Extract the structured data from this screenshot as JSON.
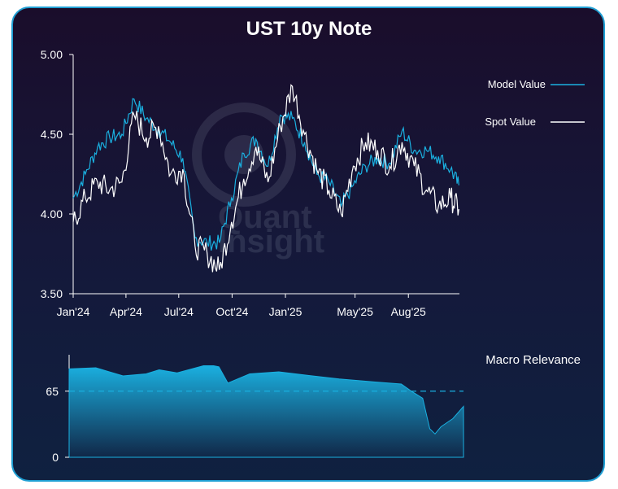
{
  "chart_data": [
    {
      "type": "line",
      "title": "UST 10y Note",
      "xlabel": "",
      "ylabel": "",
      "ylim": [
        3.5,
        5.0
      ],
      "yticks": [
        "3.50",
        "4.00",
        "4.50",
        "5.00"
      ],
      "xticks": [
        "Jan'24",
        "Apr'24",
        "Jul'24",
        "Oct'24",
        "Jan'25",
        "May'25",
        "Aug'25"
      ],
      "legend_position": "top-right",
      "series": [
        {
          "name": "Model Value",
          "color": "#1ab0e0",
          "x": [
            "2024-01-01",
            "2024-01-22",
            "2024-02-12",
            "2024-03-04",
            "2024-03-25",
            "2024-04-15",
            "2024-05-06",
            "2024-05-27",
            "2024-06-17",
            "2024-07-08",
            "2024-07-29",
            "2024-08-19",
            "2024-09-09",
            "2024-09-30",
            "2024-10-21",
            "2024-11-11",
            "2024-12-02",
            "2024-12-23",
            "2025-01-13",
            "2025-02-03",
            "2025-02-24",
            "2025-03-17",
            "2025-04-07",
            "2025-04-28",
            "2025-05-19",
            "2025-06-09",
            "2025-06-30",
            "2025-07-21",
            "2025-08-11",
            "2025-09-01",
            "2025-09-22",
            "2025-10-13",
            "2025-10-27"
          ],
          "values": [
            4.1,
            4.25,
            4.42,
            4.48,
            4.5,
            4.72,
            4.6,
            4.53,
            4.45,
            4.35,
            3.85,
            3.82,
            3.82,
            4.1,
            4.38,
            4.47,
            4.3,
            4.62,
            4.6,
            4.45,
            4.25,
            4.2,
            4.05,
            4.18,
            4.3,
            4.35,
            4.32,
            4.52,
            4.4,
            4.4,
            4.36,
            4.28,
            4.18
          ]
        },
        {
          "name": "Spot Value",
          "color": "#ffffff",
          "x": [
            "2024-01-01",
            "2024-01-22",
            "2024-02-12",
            "2024-03-04",
            "2024-03-25",
            "2024-04-15",
            "2024-05-06",
            "2024-05-27",
            "2024-06-17",
            "2024-07-08",
            "2024-07-29",
            "2024-08-19",
            "2024-09-09",
            "2024-09-30",
            "2024-10-21",
            "2024-11-11",
            "2024-12-02",
            "2024-12-23",
            "2025-01-13",
            "2025-02-03",
            "2025-02-24",
            "2025-03-17",
            "2025-04-07",
            "2025-04-28",
            "2025-05-19",
            "2025-06-09",
            "2025-06-30",
            "2025-07-21",
            "2025-08-11",
            "2025-09-01",
            "2025-09-22",
            "2025-10-13",
            "2025-10-27"
          ],
          "values": [
            3.95,
            4.1,
            4.2,
            4.15,
            4.2,
            4.62,
            4.48,
            4.55,
            4.25,
            4.28,
            3.8,
            3.75,
            3.65,
            3.95,
            4.22,
            4.42,
            4.2,
            4.55,
            4.8,
            4.5,
            4.28,
            4.15,
            4.0,
            4.3,
            4.45,
            4.4,
            4.3,
            4.45,
            4.3,
            4.15,
            4.05,
            4.1,
            4.03
          ]
        }
      ]
    },
    {
      "type": "area",
      "title": "Macro Relevance",
      "ylim": [
        0,
        100
      ],
      "yticks": [
        "0",
        "65"
      ],
      "threshold": 65,
      "color": "#1ab0e0",
      "x": [
        "2024-01-01",
        "2024-02-15",
        "2024-04-01",
        "2024-05-10",
        "2024-06-01",
        "2024-07-01",
        "2024-08-15",
        "2024-09-01",
        "2024-09-10",
        "2024-09-25",
        "2024-11-01",
        "2024-12-20",
        "2025-02-15",
        "2025-04-01",
        "2025-06-01",
        "2025-07-15",
        "2025-08-01",
        "2025-08-20",
        "2025-09-01",
        "2025-09-10",
        "2025-09-20",
        "2025-10-10",
        "2025-10-28"
      ],
      "values": [
        87,
        88,
        80,
        82,
        86,
        83,
        90,
        90,
        89,
        73,
        82,
        84,
        80,
        77,
        74,
        72,
        65,
        58,
        28,
        23,
        30,
        38,
        50
      ]
    }
  ],
  "watermark": {
    "line1": "Quant",
    "line2": "Insight"
  }
}
